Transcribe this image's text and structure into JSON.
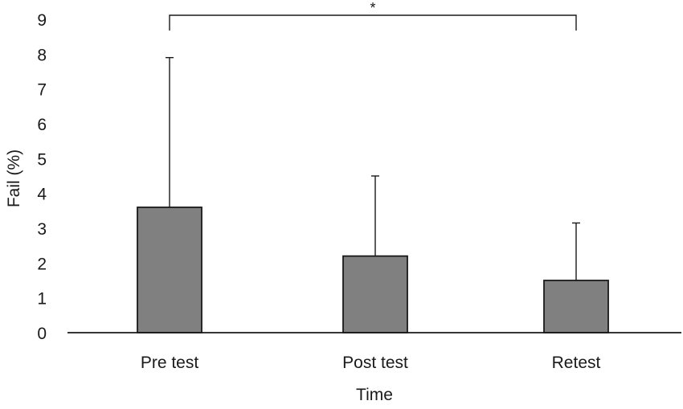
{
  "chart_data": {
    "type": "bar",
    "title": "",
    "xlabel": "Time",
    "ylabel": "Fail (%)",
    "ylim": [
      0,
      9
    ],
    "yticks": [
      0,
      1,
      2,
      3,
      4,
      5,
      6,
      7,
      8,
      9
    ],
    "categories": [
      "Pre test",
      "Post test",
      "Retest"
    ],
    "values": [
      3.6,
      2.2,
      1.5
    ],
    "error_upper": [
      7.9,
      4.5,
      3.15
    ],
    "grid": false,
    "legend": "none",
    "bar_color": "#808080",
    "annotations": [
      {
        "text": "*",
        "from_category": "Pre test",
        "to_category": "Retest"
      }
    ]
  }
}
